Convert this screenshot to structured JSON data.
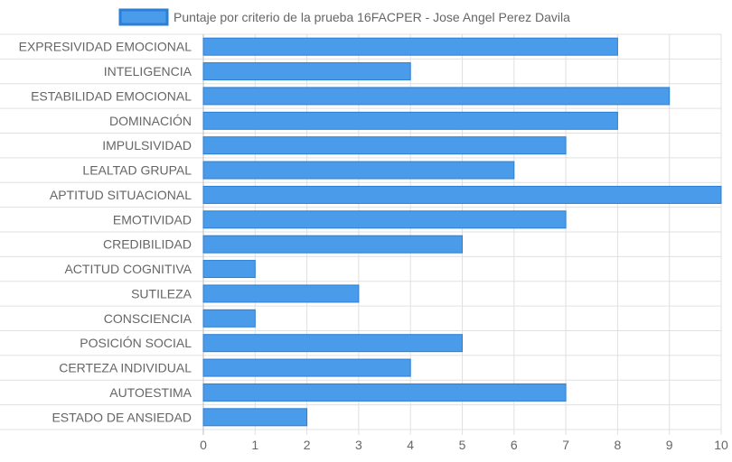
{
  "chart_data": {
    "type": "bar",
    "orientation": "horizontal",
    "legend": {
      "label": "Puntaje por criterio de la prueba 16FACPER - Jose Angel Perez Davila",
      "placement": "top"
    },
    "categories": [
      "EXPRESIVIDAD EMOCIONAL",
      "INTELIGENCIA",
      "ESTABILIDAD EMOCIONAL",
      "DOMINACIÓN",
      "IMPULSIVIDAD",
      "LEALTAD GRUPAL",
      "APTITUD SITUACIONAL",
      "EMOTIVIDAD",
      "CREDIBILIDAD",
      "ACTITUD COGNITIVA",
      "SUTILEZA",
      "CONSCIENCIA",
      "POSICIÓN SOCIAL",
      "CERTEZA INDIVIDUAL",
      "AUTOESTIMA",
      "ESTADO DE ANSIEDAD"
    ],
    "series": [
      {
        "name": "Puntaje por criterio de la prueba 16FACPER - Jose Angel Perez Davila",
        "values": [
          8,
          4,
          9,
          8,
          7,
          6,
          10,
          7,
          5,
          1,
          3,
          1,
          5,
          4,
          7,
          2
        ]
      }
    ],
    "xlim": [
      0,
      10
    ],
    "xticks": [
      "0",
      "1",
      "2",
      "3",
      "4",
      "5",
      "6",
      "7",
      "8",
      "9",
      "10"
    ],
    "grid": true,
    "colors": {
      "bar_fill": "#4a9bea",
      "bar_stroke": "#2b7fd4",
      "grid": "#e0e0e0",
      "text": "#666666"
    }
  }
}
